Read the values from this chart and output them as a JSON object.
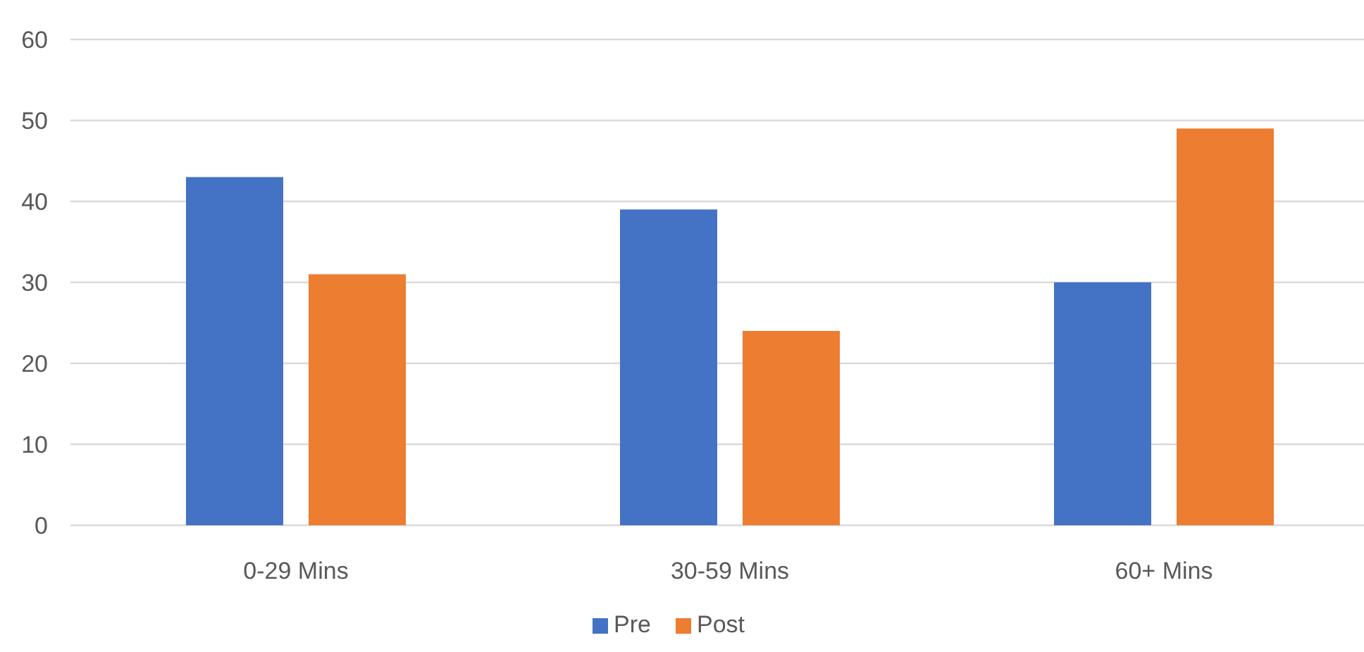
{
  "chart_data": {
    "type": "bar",
    "categories": [
      "0-29 Mins",
      "30-59 Mins",
      "60+ Mins"
    ],
    "series": [
      {
        "name": "Pre",
        "color": "#4472c4",
        "values": [
          43,
          39,
          30
        ]
      },
      {
        "name": "Post",
        "color": "#ed7d31",
        "values": [
          31,
          24,
          49
        ]
      }
    ],
    "ylim": [
      0,
      60
    ],
    "yticks": [
      0,
      10,
      20,
      30,
      40,
      50,
      60
    ],
    "grid": "y",
    "legend": "bottom"
  }
}
